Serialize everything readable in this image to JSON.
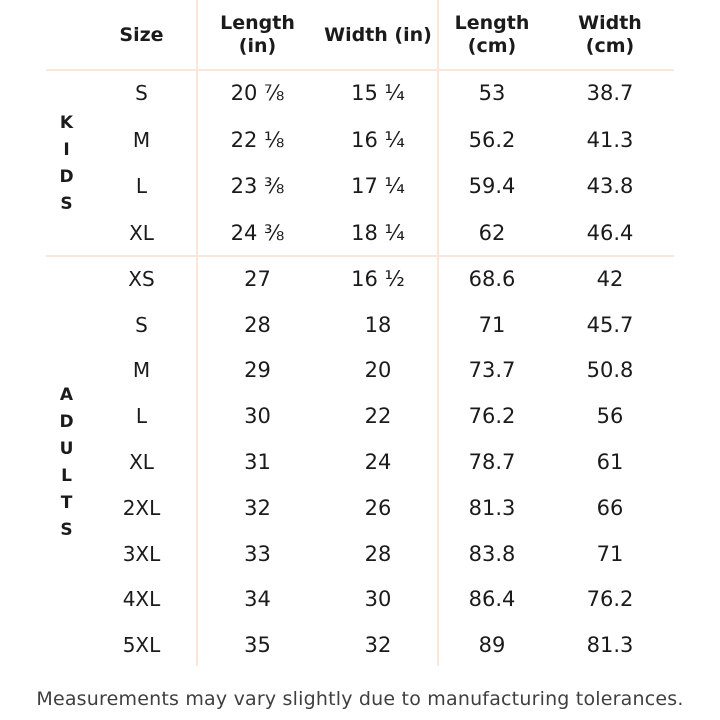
{
  "table": {
    "columns": [
      {
        "lines": [
          "Size",
          ""
        ]
      },
      {
        "lines": [
          "Length",
          "(in)"
        ]
      },
      {
        "lines": [
          "Width (in)",
          ""
        ]
      },
      {
        "lines": [
          "Length",
          "(cm)"
        ]
      },
      {
        "lines": [
          "Width",
          "(cm)"
        ]
      }
    ],
    "sections": [
      {
        "label": "KIDS",
        "rows": [
          {
            "size": "S",
            "length_in": "20 ⅞",
            "width_in": "15 ¼",
            "length_cm": "53",
            "width_cm": "38.7"
          },
          {
            "size": "M",
            "length_in": "22 ⅛",
            "width_in": "16 ¼",
            "length_cm": "56.2",
            "width_cm": "41.3"
          },
          {
            "size": "L",
            "length_in": "23 ⅜",
            "width_in": "17 ¼",
            "length_cm": "59.4",
            "width_cm": "43.8"
          },
          {
            "size": "XL",
            "length_in": "24 ⅜",
            "width_in": "18 ¼",
            "length_cm": "62",
            "width_cm": "46.4"
          }
        ]
      },
      {
        "label": "ADULTS",
        "rows": [
          {
            "size": "XS",
            "length_in": "27",
            "width_in": "16 ½",
            "length_cm": "68.6",
            "width_cm": "42"
          },
          {
            "size": "S",
            "length_in": "28",
            "width_in": "18",
            "length_cm": "71",
            "width_cm": "45.7"
          },
          {
            "size": "M",
            "length_in": "29",
            "width_in": "20",
            "length_cm": "73.7",
            "width_cm": "50.8"
          },
          {
            "size": "L",
            "length_in": "30",
            "width_in": "22",
            "length_cm": "76.2",
            "width_cm": "56"
          },
          {
            "size": "XL",
            "length_in": "31",
            "width_in": "24",
            "length_cm": "78.7",
            "width_cm": "61"
          },
          {
            "size": "2XL",
            "length_in": "32",
            "width_in": "26",
            "length_cm": "81.3",
            "width_cm": "66"
          },
          {
            "size": "3XL",
            "length_in": "33",
            "width_in": "28",
            "length_cm": "83.8",
            "width_cm": "71"
          },
          {
            "size": "4XL",
            "length_in": "34",
            "width_in": "30",
            "length_cm": "86.4",
            "width_cm": "76.2"
          },
          {
            "size": "5XL",
            "length_in": "35",
            "width_in": "32",
            "length_cm": "89",
            "width_cm": "81.3"
          }
        ]
      }
    ]
  },
  "footer": {
    "note": "Measurements may vary slightly due to manufacturing tolerances."
  },
  "colors": {
    "divider_line": "#fae6db",
    "text": "#1b1b1b",
    "footer_text": "#3f3f3f",
    "background": "#ffffff"
  }
}
